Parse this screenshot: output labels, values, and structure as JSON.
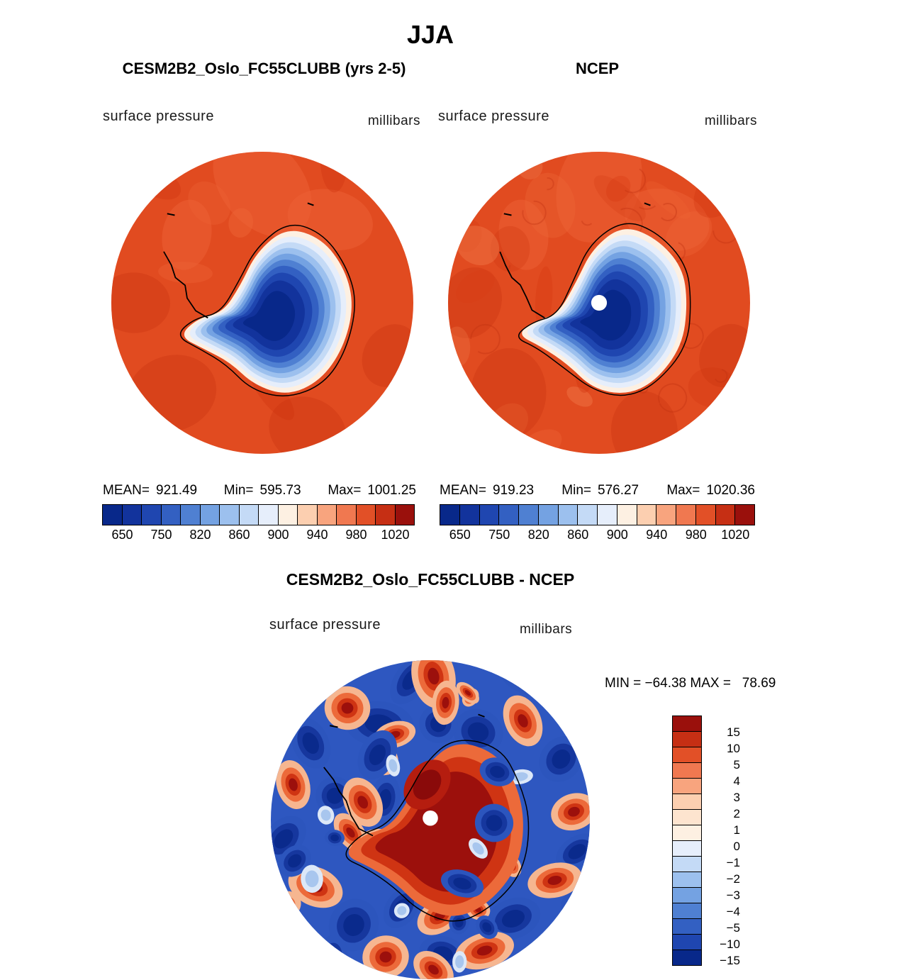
{
  "title": "JJA",
  "panels": {
    "left": {
      "title": "CESM2B2_Oslo_FC55CLUBB (yrs 2-5)",
      "field_label": "surface pressure",
      "units_label": "millibars",
      "stats": {
        "mean_label": "MEAN=",
        "mean": "921.49",
        "min_label": "Min=",
        "min": "595.73",
        "max_label": "Max=",
        "max": "1001.25"
      }
    },
    "right": {
      "title": "NCEP",
      "field_label": "surface pressure",
      "units_label": "millibars",
      "stats": {
        "mean_label": "MEAN=",
        "mean": "919.23",
        "min_label": "Min=",
        "min": "576.27",
        "max_label": "Max=",
        "max": "1020.36"
      }
    },
    "diff": {
      "title": "CESM2B2_Oslo_FC55CLUBB - NCEP",
      "field_label": "surface pressure",
      "units_label": "millibars",
      "minmax": "MIN = −64.38 MAX =   78.69"
    }
  },
  "colorbar": {
    "ticks": [
      "650",
      "750",
      "820",
      "860",
      "900",
      "940",
      "980",
      "1020"
    ],
    "colors": [
      "#08288a",
      "#12339c",
      "#1f46b0",
      "#3360c2",
      "#4f80d2",
      "#74a2e2",
      "#9cc0ee",
      "#c4daf6",
      "#e6eefb",
      "#fdf0e2",
      "#fccfb0",
      "#f8a47e",
      "#f07850",
      "#e25027",
      "#c62f14",
      "#9a100c"
    ]
  },
  "diff_colorbar": {
    "labels": [
      "15",
      "10",
      "5",
      "4",
      "3",
      "2",
      "1",
      "0",
      "−1",
      "−2",
      "−3",
      "−4",
      "−5",
      "−10",
      "−15"
    ],
    "colors": [
      "#9a100c",
      "#c62f14",
      "#e25027",
      "#f07850",
      "#f8a47e",
      "#fccfb0",
      "#fde4cf",
      "#fdf0e2",
      "#e6eefb",
      "#c4daf6",
      "#9cc0ee",
      "#74a2e2",
      "#4f80d2",
      "#3360c2",
      "#1f46b0",
      "#08288a"
    ]
  },
  "chart_data": {
    "type": "heatmap",
    "title": "JJA",
    "projection": "south polar stereographic",
    "panels": [
      {
        "name": "CESM2B2_Oslo_FC55CLUBB (yrs 2-5)",
        "variable": "surface pressure",
        "units": "millibars",
        "stats": {
          "mean": 921.49,
          "min": 595.73,
          "max": 1001.25
        },
        "colorbar_ticks": [
          650,
          750,
          820,
          860,
          900,
          940,
          980,
          1020
        ]
      },
      {
        "name": "NCEP",
        "variable": "surface pressure",
        "units": "millibars",
        "stats": {
          "mean": 919.23,
          "min": 576.27,
          "max": 1020.36
        },
        "colorbar_ticks": [
          650,
          750,
          820,
          860,
          900,
          940,
          980,
          1020
        ]
      },
      {
        "name": "CESM2B2_Oslo_FC55CLUBB - NCEP",
        "variable": "surface pressure",
        "units": "millibars",
        "stats": {
          "min": -64.38,
          "max": 78.69
        },
        "colorbar_ticks": [
          15,
          10,
          5,
          4,
          3,
          2,
          1,
          0,
          -1,
          -2,
          -3,
          -4,
          -5,
          -10,
          -15
        ]
      }
    ]
  }
}
